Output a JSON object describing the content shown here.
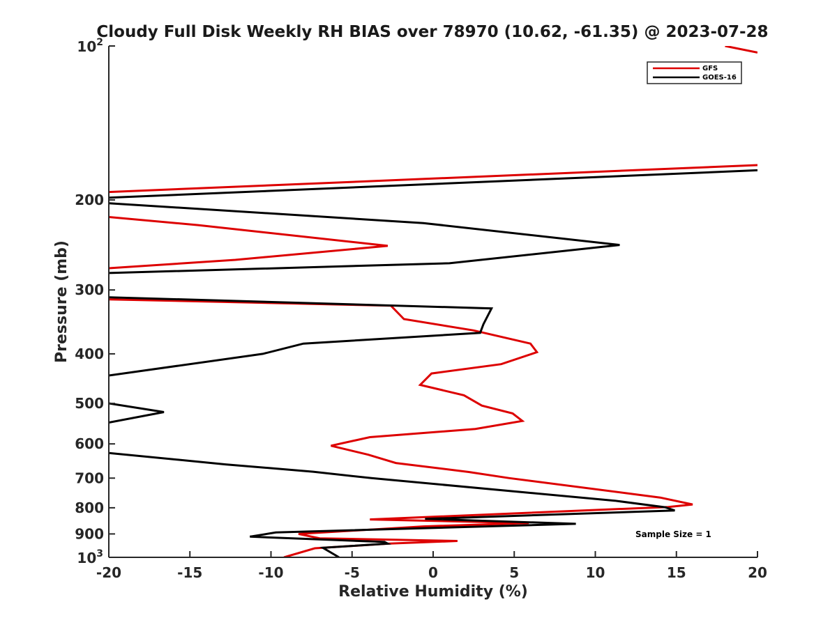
{
  "chart_data": {
    "type": "line",
    "title": "Cloudy Full Disk Weekly RH BIAS over 78970 (10.62, -61.35) @ 2023-07-28",
    "xlabel": "Relative Humidity (%)",
    "ylabel": "Pressure (mb)",
    "xlim": [
      -20,
      20
    ],
    "ylim": [
      100,
      1000
    ],
    "y_scale": "log",
    "y_reversed": true,
    "grid": false,
    "legend_position": "top-right",
    "x_ticks": [
      "-20",
      "-15",
      "-10",
      "-5",
      "0",
      "5",
      "10",
      "15",
      "20"
    ],
    "y_ticks": [
      "200",
      "300",
      "400",
      "500",
      "600",
      "700",
      "800",
      "900"
    ],
    "y_tick_values": [
      200,
      300,
      400,
      500,
      600,
      700,
      800,
      900
    ],
    "y_end_labels": {
      "top": {
        "base": "10",
        "exp": "2",
        "value": 100
      },
      "bottom": {
        "base": "10",
        "exp": "3",
        "value": 1000
      }
    },
    "annotation": "Sample Size = 1",
    "series": [
      {
        "name": "GFS",
        "color": "#dd0000",
        "segments": [
          [
            [
              18,
              100
            ],
            [
              20,
              103
            ]
          ],
          [
            [
              -20,
              193
            ],
            [
              20,
              171
            ]
          ],
          [
            [
              -20,
              216
            ],
            [
              -14.5,
              224
            ],
            [
              -2.8,
              246
            ],
            [
              -12.2,
              262
            ],
            [
              -20,
              272
            ]
          ],
          [
            [
              -20,
              313
            ],
            [
              -2.6,
              322
            ],
            [
              -1.8,
              342
            ],
            [
              2.5,
              360
            ],
            [
              6,
              382
            ],
            [
              6.4,
              397
            ],
            [
              4.2,
              419
            ],
            [
              -0.1,
              437
            ],
            [
              -0.8,
              460
            ],
            [
              1.9,
              482
            ],
            [
              3,
              505
            ],
            [
              4.9,
              523
            ],
            [
              5.5,
              541
            ],
            [
              2.6,
              561
            ],
            [
              -3.9,
              582
            ],
            [
              -6.3,
              605
            ],
            [
              -4,
              630
            ],
            [
              -2.3,
              654
            ],
            [
              2.2,
              681
            ],
            [
              4.7,
              700
            ],
            [
              14,
              764
            ],
            [
              16,
              788
            ],
            [
              14.5,
              797
            ],
            [
              -3.9,
              843
            ],
            [
              5.9,
              857
            ],
            [
              -0.6,
              870
            ],
            [
              -8.3,
              900
            ],
            [
              -7,
              918
            ],
            [
              1.5,
              929
            ],
            [
              -2.7,
              940
            ],
            [
              -7.3,
              960
            ],
            [
              -9.2,
              1000
            ]
          ]
        ]
      },
      {
        "name": "GOES-16",
        "color": "#000000",
        "segments": [
          [
            [
              -20,
              198
            ],
            [
              20,
              175
            ]
          ],
          [
            [
              -20,
              203
            ],
            [
              -0.6,
              222
            ],
            [
              11.5,
              245
            ],
            [
              1,
              266
            ],
            [
              -20,
              278
            ]
          ],
          [
            [
              -20,
              310
            ],
            [
              3.6,
              326
            ],
            [
              3.1,
              350
            ],
            [
              2.9,
              364
            ],
            [
              -8,
              382
            ],
            [
              -10.5,
              400
            ],
            [
              -20,
              441
            ]
          ],
          [
            [
              -20,
              500
            ],
            [
              -16.6,
              520
            ],
            [
              -20,
              545
            ]
          ],
          [
            [
              -20,
              625
            ],
            [
              -12.8,
              658
            ],
            [
              -7.4,
              680
            ],
            [
              -3.8,
              700
            ],
            [
              11.2,
              775
            ],
            [
              14.3,
              798
            ],
            [
              14.9,
              810
            ],
            [
              -0.5,
              841
            ],
            [
              8.8,
              860
            ],
            [
              -9.7,
              894
            ],
            [
              -11.3,
              911
            ],
            [
              -3,
              933
            ],
            [
              -2.8,
              940
            ],
            [
              -6.8,
              958
            ],
            [
              -5.8,
              1000
            ]
          ]
        ]
      }
    ]
  }
}
